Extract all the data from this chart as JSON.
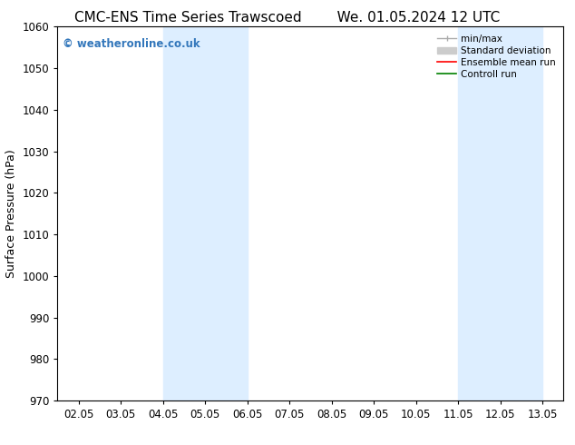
{
  "title_left": "CMC-ENS Time Series Trawscoed",
  "title_right": "We. 01.05.2024 12 UTC",
  "ylabel": "Surface Pressure (hPa)",
  "ylim": [
    970,
    1060
  ],
  "yticks": [
    970,
    980,
    990,
    1000,
    1010,
    1020,
    1030,
    1040,
    1050,
    1060
  ],
  "xlabels": [
    "02.05",
    "03.05",
    "04.05",
    "05.05",
    "06.05",
    "07.05",
    "08.05",
    "09.05",
    "10.05",
    "11.05",
    "12.05",
    "13.05"
  ],
  "xtick_positions": [
    0,
    1,
    2,
    3,
    4,
    5,
    6,
    7,
    8,
    9,
    10,
    11
  ],
  "shaded_bands": [
    {
      "x_start": 2,
      "x_end": 4,
      "color": "#ddeeff"
    },
    {
      "x_start": 9,
      "x_end": 11,
      "color": "#ddeeff"
    }
  ],
  "watermark_text": "© weatheronline.co.uk",
  "watermark_color": "#3377bb",
  "bg_color": "#ffffff",
  "title_fontsize": 11,
  "axis_label_fontsize": 9,
  "tick_fontsize": 8.5,
  "legend_fontsize": 7.5
}
